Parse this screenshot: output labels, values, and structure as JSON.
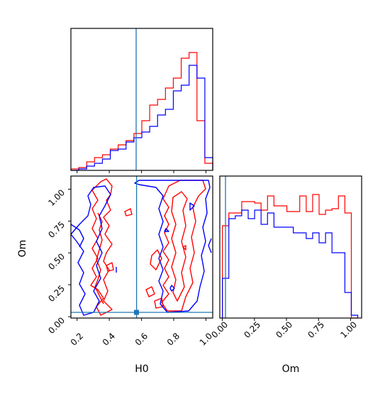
{
  "chart_data": [
    {
      "panel": "H0 marginal",
      "type": "histogram-step",
      "xlim": [
        0.15,
        1.05
      ],
      "ylim": [
        0,
        1
      ],
      "bin_edges": [
        0.15,
        0.2,
        0.25,
        0.3,
        0.35,
        0.4,
        0.45,
        0.5,
        0.55,
        0.6,
        0.65,
        0.7,
        0.75,
        0.8,
        0.85,
        0.9,
        0.95,
        1.0,
        1.05
      ],
      "series": [
        {
          "color": "#ff0000",
          "values": [
            0.01,
            0.02,
            0.06,
            0.09,
            0.11,
            0.15,
            0.18,
            0.21,
            0.26,
            0.35,
            0.46,
            0.5,
            0.58,
            0.65,
            0.79,
            0.83,
            0.35,
            0.05
          ]
        },
        {
          "color": "#0000ff",
          "values": [
            0.0,
            0.01,
            0.03,
            0.05,
            0.08,
            0.14,
            0.15,
            0.2,
            0.23,
            0.27,
            0.31,
            0.39,
            0.43,
            0.56,
            0.6,
            0.74,
            0.65,
            0.09
          ]
        }
      ],
      "truth_line": 0.57
    },
    {
      "panel": "H0 vs Om",
      "type": "contour",
      "xlim": [
        0.15,
        1.03
      ],
      "ylim": [
        0.0,
        1.1
      ],
      "x_ticks": [
        "0.2",
        "0.4",
        "0.6",
        "0.8",
        "1.0"
      ],
      "y_ticks": [
        "0.00",
        "0.25",
        "0.50",
        "0.75",
        "1.00"
      ],
      "xlabel": "H0",
      "ylabel": "Om",
      "truth_point": [
        0.57,
        0.03
      ],
      "series": [
        {
          "color": "#ff0000",
          "description": "outer contour spanning H0 0.25-0.45 and 0.65-0.98"
        },
        {
          "color": "#0000ff",
          "description": "outer contour spanning H0 0.15-0.45 and 0.55-1.02"
        }
      ]
    },
    {
      "panel": "Om marginal",
      "type": "histogram-step",
      "xlim": [
        -0.02,
        1.08
      ],
      "ylim": [
        0,
        1
      ],
      "x_ticks": [
        "0.00",
        "0.25",
        "0.50",
        "0.75",
        "1.00"
      ],
      "xlabel": "Om",
      "bin_edges": [
        0.0,
        0.05,
        0.1,
        0.15,
        0.2,
        0.25,
        0.3,
        0.35,
        0.4,
        0.45,
        0.5,
        0.55,
        0.6,
        0.65,
        0.7,
        0.75,
        0.8,
        0.85,
        0.9,
        0.95,
        1.0,
        1.05
      ],
      "series": [
        {
          "color": "#ff0000",
          "values": [
            0.65,
            0.74,
            0.74,
            0.82,
            0.82,
            0.81,
            0.76,
            0.86,
            0.79,
            0.79,
            0.75,
            0.75,
            0.86,
            0.75,
            0.87,
            0.73,
            0.76,
            0.77,
            0.86,
            0.74,
            0.0
          ]
        },
        {
          "color": "#0000ff",
          "values": [
            0.28,
            0.7,
            0.72,
            0.76,
            0.7,
            0.76,
            0.66,
            0.74,
            0.64,
            0.64,
            0.64,
            0.6,
            0.6,
            0.56,
            0.6,
            0.53,
            0.6,
            0.46,
            0.46,
            0.18,
            0.02
          ]
        }
      ],
      "truth_line": 0.03
    }
  ],
  "labels": {
    "h0_axis": "H0",
    "om_axis_bottom": "Om",
    "om_axis_left": "Om",
    "h0_ticks": [
      "0.2",
      "0.4",
      "0.6",
      "0.8",
      "1.0"
    ],
    "om_ticks_left": [
      "0.00",
      "0.25",
      "0.50",
      "0.75",
      "1.00"
    ],
    "om_ticks_bottom": [
      "0.00",
      "0.25",
      "0.50",
      "0.75",
      "1.00"
    ]
  },
  "colors": {
    "red": "#ff0000",
    "blue": "#0000ff",
    "truth": "#1f77b4"
  }
}
